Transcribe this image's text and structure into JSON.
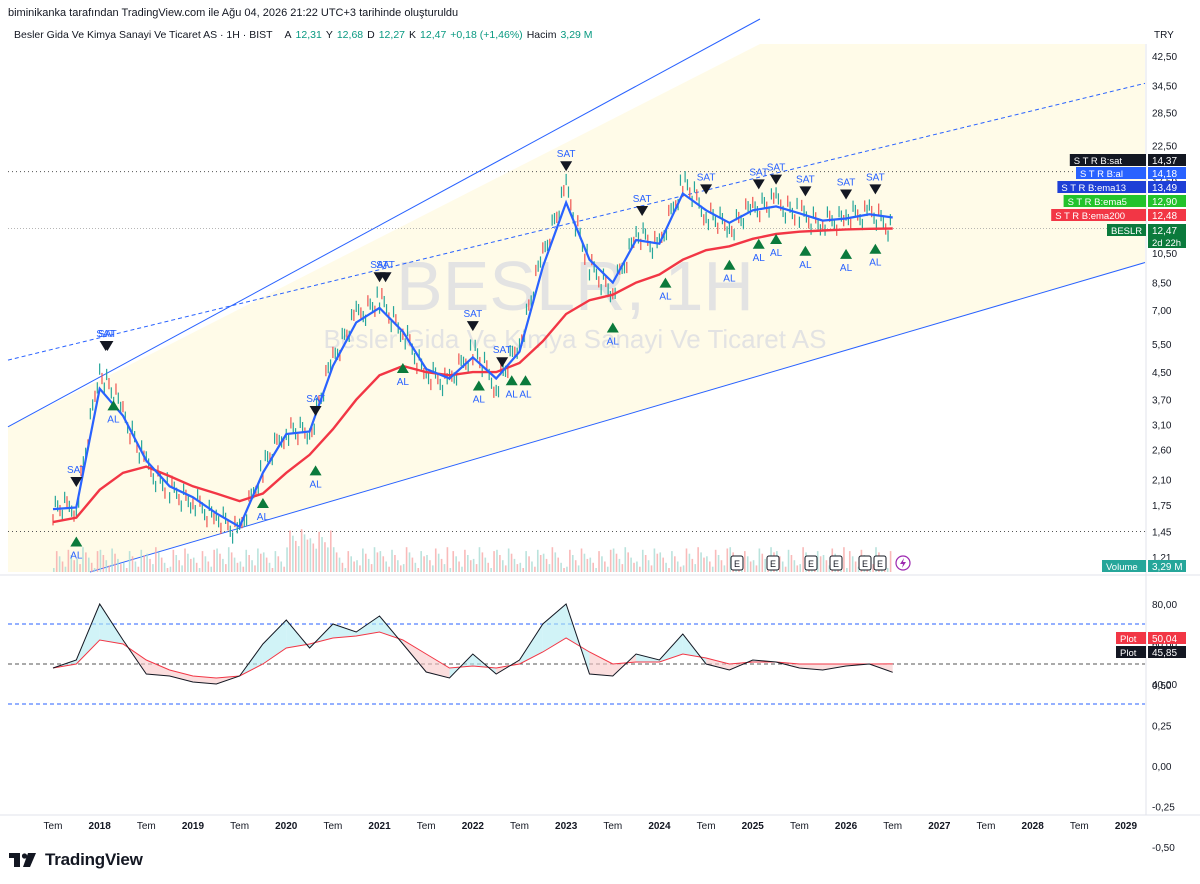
{
  "header": {
    "attribution": "biminikanka tarafından TradingView.com ile Ağu 04, 2026 21:22 UTC+3 tarihinde oluşturuldu",
    "symbol": "Besler Gida Ve Kimya Sanayi Ve Ticaret AS · 1H · BIST",
    "open_label": "A",
    "open_value": "12,31",
    "high_label": "Y",
    "high_value": "12,68",
    "low_label": "D",
    "low_value": "12,27",
    "close_label": "K",
    "close_value": "12,47",
    "change_value": "+0,18 (+1,46%)",
    "volume_label": "Hacim",
    "volume_value": "3,29 M",
    "currency": "TRY"
  },
  "watermark": {
    "ticker": "BESLR, 1H",
    "name": "Besler Gida Ve Kimya Sanayi Ve Ticaret AS"
  },
  "price_axis": {
    "ticks": [
      "42,50",
      "34,50",
      "28,50",
      "22,50",
      "17,50",
      "14,00",
      "10,50",
      "8,50",
      "7,00",
      "5,50",
      "4,50",
      "3,70",
      "3,10",
      "2,60",
      "2,10",
      "1,75",
      "1,45",
      "1,21"
    ],
    "tick_values": [
      42.5,
      34.5,
      28.5,
      22.5,
      17.5,
      14.0,
      10.5,
      8.5,
      7.0,
      5.5,
      4.5,
      3.7,
      3.1,
      2.6,
      2.1,
      1.75,
      1.45,
      1.21
    ],
    "scale": "log"
  },
  "indicator_axis": {
    "ticks": [
      "80,00",
      "60,00",
      "40,00"
    ],
    "tick_values": [
      80,
      60,
      40
    ]
  },
  "lower_axis": {
    "ticks": [
      "0,50",
      "0,25",
      "0,00",
      "-0,25",
      "-0,50"
    ],
    "tick_values": [
      0.5,
      0.25,
      0.0,
      -0.25,
      -0.5
    ]
  },
  "time_axis": {
    "labels": [
      "Tem",
      "2018",
      "Tem",
      "2019",
      "Tem",
      "2020",
      "Tem",
      "2021",
      "Tem",
      "2022",
      "Tem",
      "2023",
      "Tem",
      "2024",
      "Tem",
      "2025",
      "Tem",
      "2026",
      "Tem",
      "2027",
      "Tem",
      "2028",
      "Tem",
      "2029"
    ],
    "bold": [
      false,
      true,
      false,
      true,
      false,
      true,
      false,
      true,
      false,
      true,
      false,
      true,
      false,
      true,
      false,
      true,
      false,
      true,
      false,
      true,
      false,
      true,
      false,
      true
    ]
  },
  "price_tags": [
    {
      "label": "S T R B:sat",
      "value": "14,37",
      "color": "#131722"
    },
    {
      "label": "S T R B:al",
      "value": "14,18",
      "color": "#2962ff"
    },
    {
      "label": "S T R B:ema13",
      "value": "13,49",
      "color": "#1e3fd6"
    },
    {
      "label": "S T R B:ema5",
      "value": "12,90",
      "color": "#22c32b"
    },
    {
      "label": "S T R B:ema200",
      "value": "12,48",
      "color": "#f23645"
    },
    {
      "label": "BESLR",
      "value": "12,47",
      "color": "#0b7a3c",
      "sub": "2d 22h"
    }
  ],
  "volume_tag": {
    "label": "Volume",
    "value": "3,29 M",
    "color": "#26a69a"
  },
  "indicator_tags": [
    {
      "label": "Plot",
      "value": "50,04",
      "color": "#f23645"
    },
    {
      "label": "Plot",
      "value": "45,85",
      "color": "#131722"
    }
  ],
  "signals": {
    "sell_label": "SAT",
    "buy_label": "AL"
  },
  "event_badge": "E",
  "chart_data": {
    "type": "line",
    "title": "Besler Gida Ve Kimya Sanayi Ve Ticaret AS · 1H · BIST",
    "y_scale": "log",
    "ylim": [
      1.21,
      42.5
    ],
    "x": [
      "2017-07",
      "2017-10",
      "2018-01",
      "2018-04",
      "2018-07",
      "2018-10",
      "2019-01",
      "2019-04",
      "2019-07",
      "2019-10",
      "2020-01",
      "2020-04",
      "2020-07",
      "2020-10",
      "2021-01",
      "2021-04",
      "2021-07",
      "2021-10",
      "2022-01",
      "2022-04",
      "2022-07",
      "2022-10",
      "2023-01",
      "2023-04",
      "2023-07",
      "2023-10",
      "2024-01",
      "2024-04",
      "2024-07",
      "2024-10",
      "2025-01",
      "2025-04",
      "2025-07",
      "2025-10",
      "2026-01",
      "2026-04",
      "2026-07"
    ],
    "series": [
      {
        "name": "BESLR",
        "color": "#26a69a",
        "values": [
          1.7,
          1.75,
          4.6,
          3.4,
          2.3,
          1.95,
          1.8,
          1.6,
          1.45,
          2.3,
          3.0,
          2.9,
          5.0,
          6.7,
          7.5,
          6.0,
          4.4,
          4.2,
          5.3,
          4.1,
          5.5,
          10.5,
          16.5,
          9.5,
          8.0,
          12.0,
          11.0,
          17.5,
          14.0,
          12.5,
          14.5,
          15.0,
          13.8,
          13.0,
          13.5,
          14.0,
          12.47
        ]
      },
      {
        "name": "S T R B:ema13",
        "color": "#2962ff",
        "values": [
          1.7,
          1.72,
          4.0,
          3.3,
          2.4,
          2.0,
          1.85,
          1.65,
          1.5,
          2.2,
          2.9,
          2.95,
          4.7,
          6.4,
          7.1,
          6.0,
          4.6,
          4.3,
          5.0,
          4.3,
          5.2,
          9.5,
          15.0,
          10.0,
          8.5,
          11.5,
          11.2,
          16.0,
          14.2,
          13.0,
          14.2,
          14.6,
          13.9,
          13.2,
          13.4,
          13.8,
          13.49
        ]
      },
      {
        "name": "S T R B:ema200",
        "color": "#f23645",
        "values": [
          1.55,
          1.6,
          1.95,
          2.2,
          2.3,
          2.15,
          2.0,
          1.9,
          1.8,
          1.9,
          2.2,
          2.5,
          3.0,
          3.7,
          4.4,
          4.7,
          4.5,
          4.4,
          4.5,
          4.5,
          4.8,
          5.6,
          6.8,
          7.5,
          7.8,
          8.5,
          9.0,
          10.0,
          10.7,
          11.0,
          11.6,
          12.0,
          12.2,
          12.3,
          12.4,
          12.45,
          12.48
        ]
      }
    ],
    "indicator": {
      "ylim": [
        30,
        85
      ],
      "levels": [
        70,
        50,
        30
      ],
      "series": [
        {
          "name": "Plot",
          "color": "#131722",
          "values": [
            48,
            52,
            80,
            62,
            45,
            44,
            41,
            40,
            44,
            60,
            72,
            58,
            70,
            66,
            74,
            60,
            46,
            43,
            55,
            45,
            52,
            70,
            80,
            45,
            44,
            55,
            52,
            65,
            50,
            47,
            52,
            51,
            48,
            47,
            49,
            50,
            45.85
          ]
        },
        {
          "name": "Plot",
          "color": "#f23645",
          "values": [
            48,
            50,
            62,
            60,
            52,
            47,
            44,
            43,
            44,
            50,
            58,
            60,
            63,
            64,
            66,
            62,
            55,
            48,
            49,
            48,
            50,
            56,
            63,
            56,
            50,
            51,
            51,
            55,
            53,
            50,
            51,
            51,
            50,
            50,
            50,
            50,
            50.04
          ]
        }
      ]
    },
    "sell_signals": [
      "2017-10",
      "2018-01",
      "2018-02",
      "2020-04",
      "2021-01",
      "2021-01",
      "2022-01",
      "2022-04",
      "2023-01",
      "2023-10",
      "2024-07",
      "2025-01",
      "2025-04",
      "2025-07",
      "2026-01",
      "2026-04"
    ],
    "buy_signals": [
      "2017-10",
      "2018-02",
      "2019-10",
      "2020-04",
      "2021-04",
      "2022-01",
      "2022-06",
      "2022-07",
      "2023-07",
      "2024-01",
      "2024-10",
      "2025-01",
      "2025-04",
      "2025-07",
      "2026-01",
      "2026-04"
    ]
  }
}
